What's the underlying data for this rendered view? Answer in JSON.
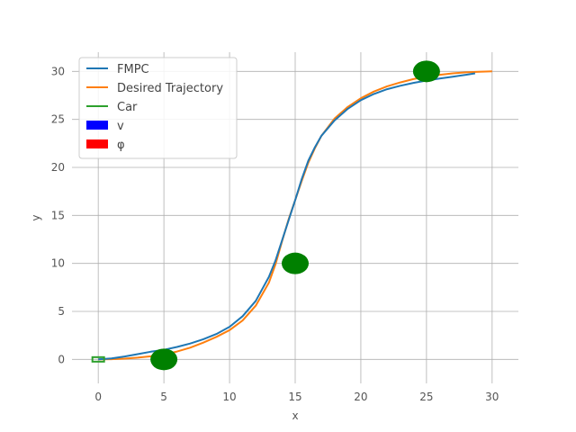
{
  "chart_data": {
    "type": "line",
    "xlabel": "x",
    "ylabel": "y",
    "xlim": [
      -2,
      32
    ],
    "ylim": [
      -2.5,
      32
    ],
    "xticks": [
      0,
      5,
      10,
      15,
      20,
      25,
      30
    ],
    "yticks": [
      0,
      5,
      10,
      15,
      20,
      25,
      30
    ],
    "grid": true,
    "legend_placement": "top-left",
    "legend": [
      {
        "label": "FMPC",
        "kind": "line",
        "color": "#1f77b4"
      },
      {
        "label": "Desired Trajectory",
        "kind": "line",
        "color": "#ff7f0e"
      },
      {
        "label": "Car",
        "kind": "line",
        "color": "#2ca02c"
      },
      {
        "label": "v",
        "kind": "patch",
        "color": "#0000ff"
      },
      {
        "label": "φ",
        "kind": "patch",
        "color": "#ff0000"
      }
    ],
    "series": [
      {
        "name": "FMPC",
        "color": "#1f77b4",
        "x": [
          0,
          1,
          2,
          3,
          4,
          5,
          6,
          7,
          8,
          9,
          10,
          11,
          12,
          13,
          13.5,
          14,
          14.5,
          15,
          15.5,
          16,
          16.5,
          17,
          18,
          19,
          20,
          21,
          22,
          23,
          24,
          25,
          26,
          27,
          28,
          28.7
        ],
        "y": [
          0,
          0.1,
          0.3,
          0.55,
          0.8,
          1.0,
          1.3,
          1.65,
          2.1,
          2.65,
          3.4,
          4.5,
          6.1,
          8.6,
          10.3,
          12.4,
          14.5,
          16.6,
          18.8,
          20.7,
          22.1,
          23.3,
          24.9,
          26.1,
          27.0,
          27.65,
          28.15,
          28.5,
          28.8,
          29.05,
          29.25,
          29.45,
          29.65,
          29.8
        ]
      },
      {
        "name": "Desired Trajectory",
        "color": "#ff7f0e",
        "x": [
          0,
          1,
          2,
          3,
          4,
          5,
          6,
          7,
          8,
          9,
          10,
          11,
          12,
          13,
          13.5,
          14,
          14.5,
          15,
          15.5,
          16,
          16.5,
          17,
          18,
          19,
          20,
          21,
          22,
          23,
          24,
          25,
          26,
          27,
          28,
          29,
          30
        ],
        "y": [
          0,
          0.02,
          0.08,
          0.18,
          0.32,
          0.52,
          0.82,
          1.22,
          1.75,
          2.35,
          3.05,
          4.05,
          5.6,
          8.0,
          9.9,
          12.3,
          14.6,
          16.6,
          18.6,
          20.5,
          22.0,
          23.3,
          25.1,
          26.3,
          27.2,
          27.9,
          28.45,
          28.85,
          29.2,
          29.45,
          29.65,
          29.8,
          29.9,
          29.97,
          30.0
        ]
      }
    ],
    "car": {
      "label": "Car",
      "x": 0,
      "y": 0,
      "color": "#2ca02c"
    },
    "markers": [
      {
        "x": 5,
        "y": 0,
        "color": "#008000"
      },
      {
        "x": 15,
        "y": 10,
        "color": "#008000"
      },
      {
        "x": 25,
        "y": 30,
        "color": "#008000"
      }
    ]
  }
}
